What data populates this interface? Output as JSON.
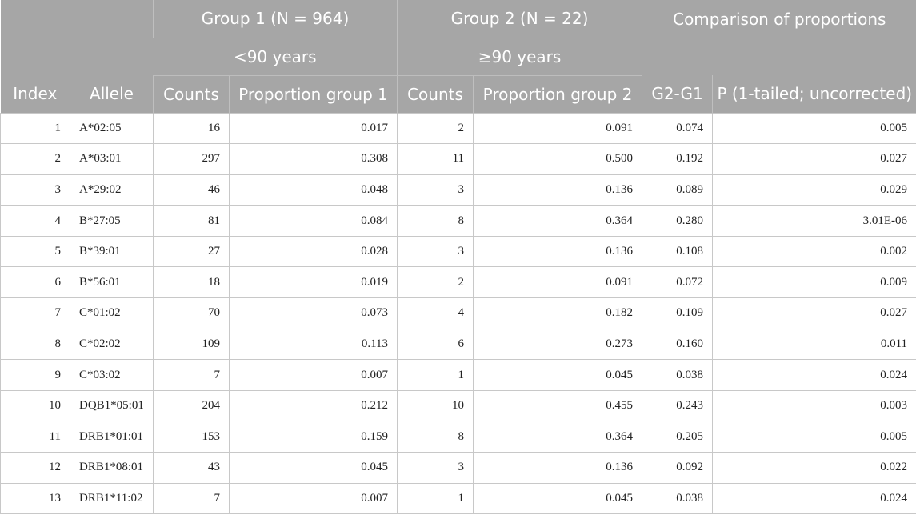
{
  "header": {
    "group1_title": "Group 1 (N = 964)",
    "group2_title": "Group 2 (N = 22)",
    "comparison_title": "Comparison of proportions",
    "group1_sub": "<90 years",
    "group2_sub": "≥90 years",
    "columns": [
      "Index",
      "Allele",
      "Counts",
      "Proportion group 1",
      "Counts",
      "Proportion group 2",
      "G2-G1",
      "P (1-tailed; uncorrected)"
    ]
  },
  "rows": [
    [
      "1",
      "A*02:05",
      "16",
      "0.017",
      "2",
      "0.091",
      "0.074",
      "0.005"
    ],
    [
      "2",
      "A*03:01",
      "297",
      "0.308",
      "11",
      "0.500",
      "0.192",
      "0.027"
    ],
    [
      "3",
      "A*29:02",
      "46",
      "0.048",
      "3",
      "0.136",
      "0.089",
      "0.029"
    ],
    [
      "4",
      "B*27:05",
      "81",
      "0.084",
      "8",
      "0.364",
      "0.280",
      "3.01E-06"
    ],
    [
      "5",
      "B*39:01",
      "27",
      "0.028",
      "3",
      "0.136",
      "0.108",
      "0.002"
    ],
    [
      "6",
      "B*56:01",
      "18",
      "0.019",
      "2",
      "0.091",
      "0.072",
      "0.009"
    ],
    [
      "7",
      "C*01:02",
      "70",
      "0.073",
      "4",
      "0.182",
      "0.109",
      "0.027"
    ],
    [
      "8",
      "C*02:02",
      "109",
      "0.113",
      "6",
      "0.273",
      "0.160",
      "0.011"
    ],
    [
      "9",
      "C*03:02",
      "7",
      "0.007",
      "1",
      "0.045",
      "0.038",
      "0.024"
    ],
    [
      "10",
      "DQB1*05:01",
      "204",
      "0.212",
      "10",
      "0.455",
      "0.243",
      "0.003"
    ],
    [
      "11",
      "DRB1*01:01",
      "153",
      "0.159",
      "8",
      "0.364",
      "0.205",
      "0.005"
    ],
    [
      "12",
      "DRB1*08:01",
      "43",
      "0.045",
      "3",
      "0.136",
      "0.092",
      "0.022"
    ],
    [
      "13",
      "DRB1*11:02",
      "7",
      "0.007",
      "1",
      "0.045",
      "0.038",
      "0.024"
    ]
  ]
}
